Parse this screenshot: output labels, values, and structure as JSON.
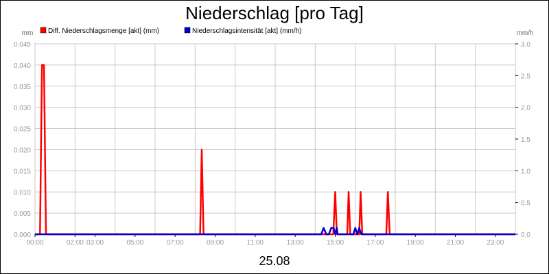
{
  "chart_data": {
    "type": "line",
    "title": "Niederschlag [pro Tag]",
    "date_label": "25.08",
    "y_left_unit": "mm",
    "y_right_unit": "mm/h",
    "y_left_range": [
      0,
      0.045
    ],
    "y_right_range": [
      0,
      3.0
    ],
    "y_left_ticks": [
      "0.000",
      "0.005",
      "0.010",
      "0.015",
      "0.020",
      "0.025",
      "0.030",
      "0.035",
      "0.040",
      "0.045"
    ],
    "y_right_ticks": [
      "0.0",
      "0.5",
      "1.0",
      "1.5",
      "2.0",
      "2.5",
      "3.0"
    ],
    "x_range_hours": [
      0,
      24
    ],
    "x_ticks": [
      {
        "h": 0,
        "label": "00:00"
      },
      {
        "h": 2,
        "label": "02:00"
      },
      {
        "h": 3,
        "label": "03:00"
      },
      {
        "h": 5,
        "label": "05:00"
      },
      {
        "h": 7,
        "label": "07:00"
      },
      {
        "h": 9,
        "label": "09:00"
      },
      {
        "h": 11,
        "label": "11:00"
      },
      {
        "h": 13,
        "label": "13:00"
      },
      {
        "h": 15,
        "label": "15:00"
      },
      {
        "h": 17,
        "label": "17:00"
      },
      {
        "h": 19,
        "label": "19:00"
      },
      {
        "h": 21,
        "label": "21:00"
      },
      {
        "h": 23,
        "label": "23:00"
      }
    ],
    "grid": true,
    "legend_position": "top-left",
    "series": [
      {
        "name": "Diff. Niederschlagsmenge [akt] (mm)",
        "axis": "left",
        "color": "#ff0000",
        "points": [
          [
            0,
            0
          ],
          [
            0.25,
            0
          ],
          [
            0.35,
            0.04
          ],
          [
            0.45,
            0.04
          ],
          [
            0.55,
            0
          ],
          [
            8.25,
            0
          ],
          [
            8.33,
            0.02
          ],
          [
            8.42,
            0
          ],
          [
            14.9,
            0
          ],
          [
            15.0,
            0.01
          ],
          [
            15.08,
            0
          ],
          [
            15.6,
            0
          ],
          [
            15.67,
            0.01
          ],
          [
            15.75,
            0
          ],
          [
            16.2,
            0
          ],
          [
            16.27,
            0.01
          ],
          [
            16.35,
            0
          ],
          [
            17.55,
            0
          ],
          [
            17.63,
            0.01
          ],
          [
            17.72,
            0
          ],
          [
            24,
            0
          ]
        ]
      },
      {
        "name": "Niederschlagsintensität [akt] (mm/h)",
        "axis": "right",
        "color": "#0000cc",
        "points": [
          [
            0,
            0
          ],
          [
            14.3,
            0
          ],
          [
            14.42,
            0.1
          ],
          [
            14.55,
            0
          ],
          [
            14.68,
            0
          ],
          [
            14.8,
            0.1
          ],
          [
            14.92,
            0.1
          ],
          [
            15.0,
            0
          ],
          [
            15.08,
            0.1
          ],
          [
            15.12,
            0
          ],
          [
            15.9,
            0
          ],
          [
            16.0,
            0.1
          ],
          [
            16.1,
            0
          ],
          [
            16.2,
            0.1
          ],
          [
            16.3,
            0
          ],
          [
            24,
            0
          ]
        ]
      }
    ]
  }
}
